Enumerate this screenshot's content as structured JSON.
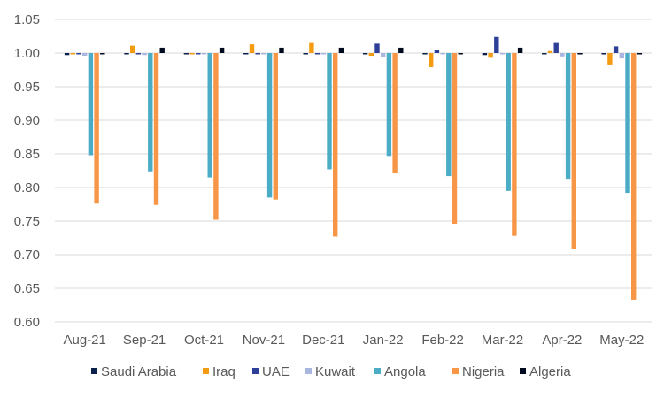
{
  "chart_data": {
    "type": "bar",
    "title": "",
    "xlabel": "",
    "ylabel": "",
    "ylim": [
      0.6,
      1.05
    ],
    "baseline": 1.0,
    "yticks": [
      "0.60",
      "0.65",
      "0.70",
      "0.75",
      "0.80",
      "0.85",
      "0.90",
      "0.95",
      "1.00",
      "1.05"
    ],
    "grid": true,
    "legend_position": "bottom",
    "categories": [
      "Aug-21",
      "Sep-21",
      "Oct-21",
      "Nov-21",
      "Dec-21",
      "Jan-22",
      "Feb-22",
      "Mar-22",
      "Apr-22",
      "May-22"
    ],
    "series": [
      {
        "name": "Saudi Arabia",
        "color": "#0b1f4b",
        "values": [
          0.997,
          0.999,
          1.0,
          0.999,
          0.999,
          0.999,
          1.0,
          0.997,
          1.0,
          0.998
        ]
      },
      {
        "name": "Iraq",
        "color": "#f39c12",
        "values": [
          1.0,
          1.011,
          1.0,
          1.013,
          1.015,
          0.996,
          0.979,
          0.993,
          1.003,
          0.983
        ]
      },
      {
        "name": "UAE",
        "color": "#2e3f98",
        "values": [
          1.0,
          1.0,
          1.0,
          1.0,
          0.999,
          1.014,
          1.004,
          1.024,
          1.015,
          1.01
        ]
      },
      {
        "name": "Kuwait",
        "color": "#a9b6e0",
        "values": [
          0.996,
          0.997,
          0.999,
          1.0,
          0.998,
          0.994,
          1.0,
          1.0,
          0.995,
          0.992
        ]
      },
      {
        "name": "Angola",
        "color": "#4aacc5",
        "values": [
          0.848,
          0.824,
          0.815,
          0.785,
          0.827,
          0.847,
          0.817,
          0.795,
          0.813,
          0.792
        ]
      },
      {
        "name": "Nigeria",
        "color": "#f79646",
        "values": [
          0.776,
          0.774,
          0.752,
          0.782,
          0.727,
          0.821,
          0.746,
          0.728,
          0.709,
          0.633
        ]
      },
      {
        "name": "Algeria",
        "color": "#000a1e",
        "values": [
          0.999,
          1.008,
          1.008,
          1.008,
          1.008,
          1.008,
          0.999,
          1.008,
          0.999,
          0.998
        ]
      }
    ]
  }
}
